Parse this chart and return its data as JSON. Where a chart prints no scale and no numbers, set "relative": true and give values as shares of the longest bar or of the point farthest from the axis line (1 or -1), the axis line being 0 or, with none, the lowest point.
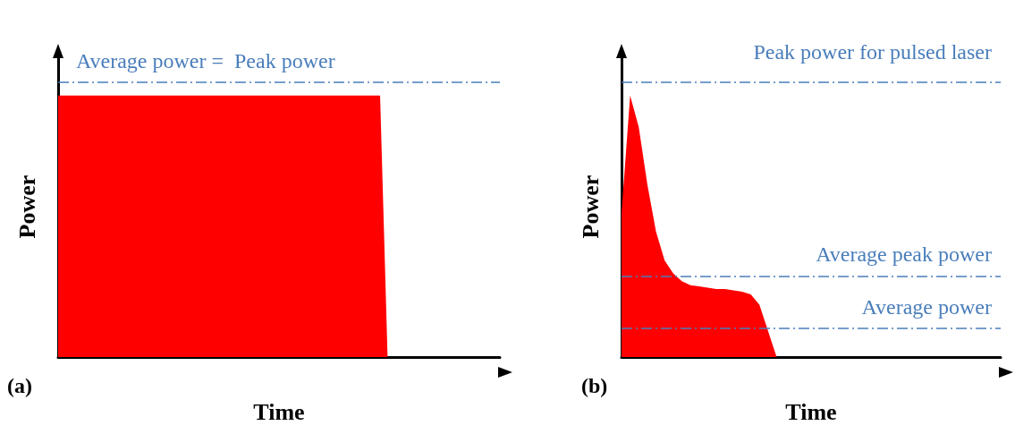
{
  "chart_data": [
    {
      "type": "area",
      "relative": true,
      "xlabel": "Time",
      "ylabel": "Power",
      "color": "#ff0000",
      "annotations": [
        "(a)"
      ],
      "categories": [
        null,
        null,
        null,
        null,
        null,
        null,
        null,
        null,
        null,
        null,
        null,
        null,
        null,
        null,
        null,
        null,
        null,
        null,
        null,
        null,
        null,
        null,
        null,
        null,
        null,
        null,
        null,
        null,
        null,
        null,
        null,
        null,
        null,
        null,
        null,
        null,
        null,
        null,
        null,
        null,
        null,
        null,
        null,
        null,
        null,
        null,
        null,
        null,
        null,
        null,
        null,
        null,
        null,
        null,
        null,
        null,
        null,
        null,
        null,
        null
      ],
      "values": [
        1,
        1,
        1,
        1,
        1,
        1,
        1,
        1,
        1,
        1,
        1,
        1,
        1,
        1,
        1,
        1,
        1,
        1,
        1,
        1,
        1,
        1,
        1,
        1,
        1,
        1,
        1,
        1,
        1,
        1,
        1,
        1,
        1,
        1,
        1,
        1,
        1,
        1,
        1,
        1,
        1,
        1,
        1,
        1,
        0,
        0,
        0,
        0,
        0,
        0,
        0,
        0,
        0,
        0,
        0,
        0,
        0,
        0,
        0,
        0
      ],
      "ref_lines": [
        {
          "axis": "y",
          "value": 1.05,
          "label": "Average power =  Peak power",
          "color": "#4a7ebb",
          "line_style": "dashdot"
        }
      ]
    },
    {
      "type": "area",
      "relative": true,
      "xlabel": "Time",
      "ylabel": "Power",
      "color": "#ff0000",
      "annotations": [
        "(b)"
      ],
      "categories": [
        null,
        null,
        null,
        null,
        null,
        null,
        null,
        null,
        null,
        null,
        null,
        null,
        null,
        null,
        null,
        null,
        null,
        null,
        null,
        null,
        null,
        null,
        null,
        null,
        null,
        null,
        null,
        null,
        null,
        null,
        null,
        null,
        null,
        null,
        null,
        null,
        null,
        null,
        null,
        null,
        null,
        null,
        null,
        null,
        null
      ],
      "values": [
        0.55,
        1,
        0.88,
        0.66,
        0.48,
        0.37,
        0.32,
        0.29,
        0.275,
        0.27,
        0.265,
        0.26,
        0.26,
        0.255,
        0.25,
        0.24,
        0.2,
        0.1,
        0,
        0,
        0,
        0,
        0,
        0,
        0,
        0,
        0,
        0,
        0,
        0,
        0,
        0,
        0,
        0,
        0,
        0,
        0,
        0,
        0,
        0,
        0,
        0,
        0,
        0,
        0
      ],
      "ref_lines": [
        {
          "axis": "y",
          "value": 1.05,
          "label": "Peak power for pulsed laser",
          "color": "#4a7ebb",
          "line_style": "dashdot"
        },
        {
          "axis": "y",
          "value": 0.31,
          "label": "Average peak power",
          "color": "#4a7ebb",
          "line_style": "dashdot"
        },
        {
          "axis": "y",
          "value": 0.11,
          "label": "Average power",
          "color": "#4a7ebb",
          "line_style": "dashdot"
        }
      ]
    }
  ]
}
